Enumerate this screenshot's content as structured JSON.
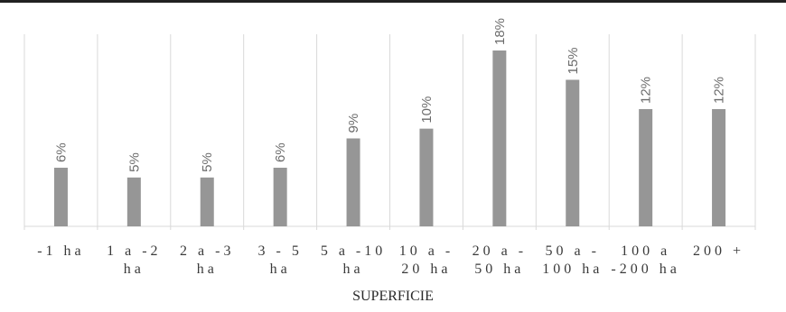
{
  "chart_data": {
    "type": "bar",
    "categories": [
      [
        "-1 ha"
      ],
      [
        "1 a -2",
        "ha"
      ],
      [
        "2 a -3",
        "ha"
      ],
      [
        "3 - 5",
        "ha"
      ],
      [
        "5 a -10",
        "ha"
      ],
      [
        "10 a -",
        "20 ha"
      ],
      [
        "20 a -",
        "50 ha"
      ],
      [
        "50 a -",
        "100 ha"
      ],
      [
        "100 a",
        "-200 ha"
      ],
      [
        "200 +"
      ]
    ],
    "values": [
      6,
      5,
      5,
      6,
      9,
      10,
      18,
      15,
      12,
      12
    ],
    "value_labels": [
      "6%",
      "5%",
      "5%",
      "6%",
      "9%",
      "10%",
      "18%",
      "15%",
      "12%",
      "12%"
    ],
    "xlabel": "SUPERFICIE",
    "ylabel": "",
    "bar_color": "#969696",
    "grid_color": "#d9d9d9",
    "grid": true
  }
}
